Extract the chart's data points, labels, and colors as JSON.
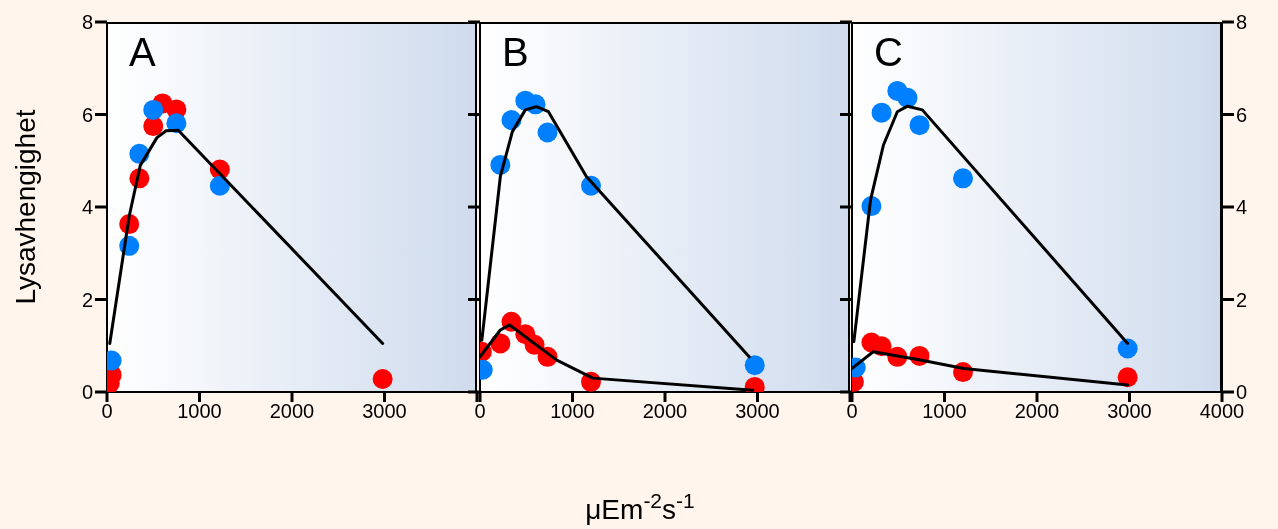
{
  "chart_data": [
    {
      "type": "scatter",
      "title": "A",
      "ylabel": "Lysavhengighet",
      "xlim": [
        0,
        4000
      ],
      "xticks": [
        0,
        1000,
        2000,
        3000,
        {
          "value": 4000,
          "label": null
        }
      ],
      "ylim": [
        0,
        8
      ],
      "yticks": [
        0,
        2,
        4,
        6,
        8
      ],
      "series": [
        {
          "color": "#ff0000",
          "marker": "circle",
          "x": [
            30,
            50,
            240,
            350,
            500,
            600,
            750,
            1220,
            2980
          ],
          "values": [
            0.19,
            0.37,
            3.63,
            4.62,
            5.75,
            6.24,
            6.11,
            4.81,
            0.28
          ]
        },
        {
          "color": "#0080ff",
          "marker": "circle",
          "x": [
            50,
            240,
            350,
            500,
            750,
            1220
          ],
          "values": [
            0.68,
            3.16,
            5.15,
            6.1,
            5.81,
            4.46
          ]
        },
        {
          "type": "line",
          "color": "#000000",
          "marker": "none",
          "x": [
            30,
            240,
            360,
            540,
            640,
            770,
            2980
          ],
          "values": [
            1.05,
            3.8,
            4.9,
            5.5,
            5.65,
            5.66,
            1.05
          ]
        }
      ]
    },
    {
      "type": "scatter",
      "title": "B",
      "xlabel": "μEm$^{-2}$s$^{-1}$",
      "xlim": [
        0,
        4000
      ],
      "xticks": [
        0,
        1000,
        2000,
        3000,
        {
          "value": 4000,
          "label": null
        }
      ],
      "ylim": [
        0,
        8
      ],
      "yticks": [
        0,
        2,
        4,
        6,
        8
      ],
      "tick_labels": "x",
      "series": [
        {
          "color": "#ff0000",
          "marker": "circle",
          "x": [
            20,
            220,
            340,
            490,
            590,
            730,
            1200,
            2970
          ],
          "values": [
            0.87,
            1.05,
            1.52,
            1.25,
            1.02,
            0.76,
            0.22,
            0.11
          ]
        },
        {
          "color": "#0080ff",
          "marker": "circle",
          "x": [
            30,
            220,
            340,
            490,
            600,
            730,
            1200,
            2970
          ],
          "values": [
            0.48,
            4.91,
            5.88,
            6.3,
            6.22,
            5.61,
            4.46,
            0.58
          ]
        },
        {
          "type": "line",
          "color": "#000000",
          "marker": "none",
          "x": [
            20,
            220,
            350,
            490,
            610,
            740,
            1150,
            2910
          ],
          "values": [
            1.12,
            4.66,
            5.63,
            6.1,
            6.17,
            6.06,
            4.66,
            0.76
          ]
        },
        {
          "type": "line",
          "color": "#000000",
          "marker": "none",
          "x": [
            0,
            220,
            320,
            830,
            1220,
            2950
          ],
          "values": [
            0.76,
            1.34,
            1.45,
            0.69,
            0.3,
            0.04
          ]
        }
      ]
    },
    {
      "type": "scatter",
      "title": "C",
      "xlim": [
        0,
        4000
      ],
      "xticks": [
        0,
        1000,
        2000,
        3000,
        4000
      ],
      "y2lim": [
        0,
        8
      ],
      "y2ticks": [
        0,
        2,
        4,
        6,
        8
      ],
      "series": [
        {
          "axis": "y2",
          "color": "#ff0000",
          "marker": "circle",
          "x": [
            20,
            210,
            320,
            490,
            730,
            1200,
            2980
          ],
          "values": [
            0.22,
            1.07,
            0.99,
            0.76,
            0.78,
            0.43,
            0.32
          ]
        },
        {
          "axis": "y2",
          "color": "#0080ff",
          "marker": "circle",
          "x": [
            40,
            210,
            320,
            490,
            600,
            730,
            1200,
            2980
          ],
          "values": [
            0.53,
            4.02,
            6.04,
            6.51,
            6.36,
            5.77,
            4.62,
            0.94
          ]
        },
        {
          "axis": "y2",
          "type": "line",
          "color": "#000000",
          "marker": "none",
          "x": [
            20,
            200,
            340,
            490,
            600,
            760,
            2980
          ],
          "values": [
            1.09,
            4.15,
            5.34,
            6.06,
            6.18,
            6.1,
            1.05
          ]
        },
        {
          "axis": "y2",
          "type": "line",
          "color": "#000000",
          "marker": "none",
          "x": [
            0,
            230,
            740,
            1210,
            2980
          ],
          "values": [
            0.51,
            0.87,
            0.69,
            0.51,
            0.15
          ]
        }
      ]
    }
  ]
}
